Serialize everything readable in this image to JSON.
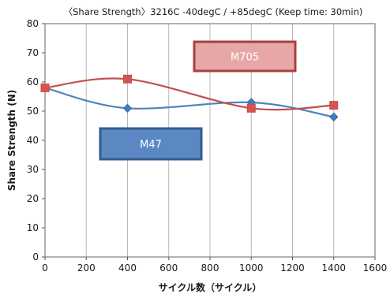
{
  "chart_data": {
    "type": "line",
    "title": "〈Share Strength〉3216C -40degC / +85degC (Keep time: 30min)",
    "xlabel": "サイクル数（サイクル）",
    "ylabel": "Share Strength (N)",
    "xlim": [
      0,
      1600
    ],
    "ylim": [
      0,
      80
    ],
    "x_ticks": [
      "0",
      "200",
      "400",
      "600",
      "800",
      "1000",
      "1200",
      "1400",
      "1600"
    ],
    "y_ticks": [
      "0",
      "10",
      "20",
      "30",
      "40",
      "50",
      "60",
      "70",
      "80"
    ],
    "grid": "vertical",
    "legend": "none",
    "series": [
      {
        "name": "M47",
        "color": "#4f81bd",
        "marker": "diamond",
        "x": [
          0,
          400,
          1000,
          1400
        ],
        "y": [
          58,
          51,
          53,
          48
        ]
      },
      {
        "name": "M705",
        "color": "#c0504d",
        "marker": "square",
        "x": [
          0,
          400,
          1000,
          1400
        ],
        "y": [
          58,
          61,
          51,
          52
        ]
      }
    ],
    "annotations": [
      {
        "text": "M705",
        "series": "M705",
        "fill": "#e6a7a6",
        "border": "#a9403c"
      },
      {
        "text": "M47",
        "series": "M47",
        "fill": "#5b88c3",
        "border": "#2f5e8c"
      }
    ]
  }
}
